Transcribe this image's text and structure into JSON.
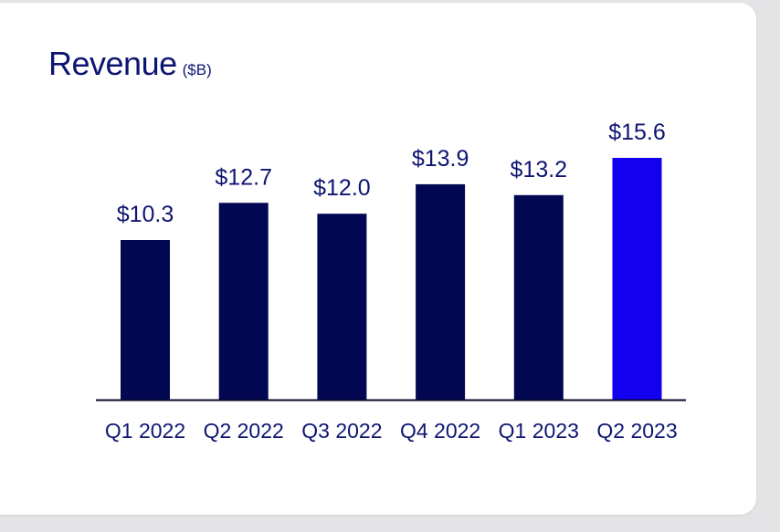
{
  "card": {
    "title": "Revenue",
    "unit": "($B)"
  },
  "colors": {
    "bar": "#020752",
    "highlight": "#1400f0",
    "axis": "#0a0a2a",
    "text": "#0d1572"
  },
  "chart_data": {
    "type": "bar",
    "title": "Revenue",
    "subtitle": "($B)",
    "xlabel": "",
    "ylabel": "",
    "categories": [
      "Q1 2022",
      "Q2 2022",
      "Q3 2022",
      "Q4 2022",
      "Q1 2023",
      "Q2 2023"
    ],
    "values": [
      10.3,
      12.7,
      12.0,
      13.9,
      13.2,
      15.6
    ],
    "value_labels": [
      "$10.3",
      "$12.7",
      "$12.0",
      "$13.9",
      "$13.2",
      "$15.6"
    ],
    "highlight_index": 5,
    "ylim": [
      0,
      15.6
    ],
    "grid": false,
    "legend": "none"
  }
}
